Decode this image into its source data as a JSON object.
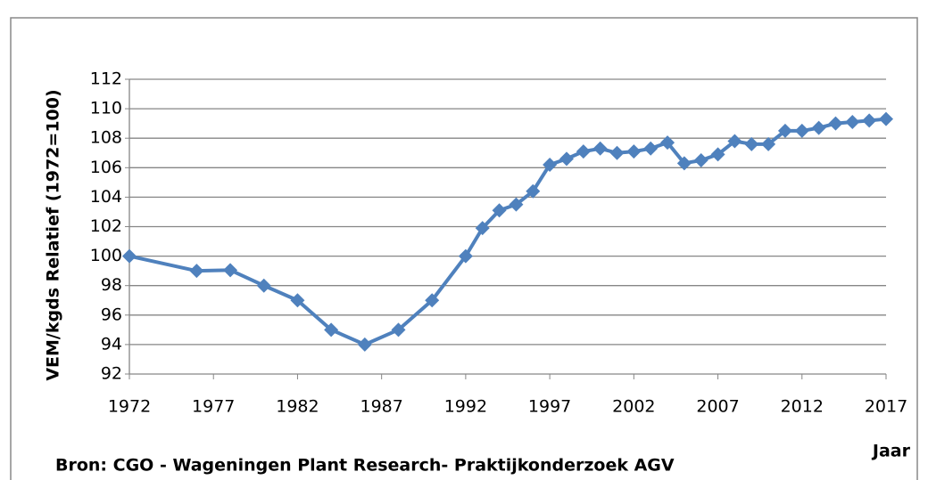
{
  "chart_data": {
    "type": "line",
    "y_label": "VEM/kgds Relatief (1972=100)",
    "x_label": "Jaar",
    "source": "Bron: CGO - Wageningen Plant Research- Praktijkonderzoek AGV",
    "x": [
      1972,
      1976,
      1978,
      1980,
      1982,
      1984,
      1986,
      1988,
      1990,
      1992,
      1993,
      1994,
      1995,
      1996,
      1997,
      1998,
      1999,
      2000,
      2001,
      2002,
      2003,
      2004,
      2005,
      2006,
      2007,
      2008,
      2009,
      2010,
      2011,
      2012,
      2013,
      2014,
      2015,
      2016,
      2017
    ],
    "series": [
      {
        "color": "#4f81bd",
        "values": [
          100,
          99,
          99.05,
          98,
          97,
          95,
          94,
          95,
          97,
          100,
          101.9,
          103.1,
          103.5,
          104.4,
          106.2,
          106.6,
          107.1,
          107.3,
          107,
          107.1,
          107.3,
          107.7,
          106.3,
          106.5,
          106.9,
          107.8,
          107.6,
          107.6,
          108.5,
          108.5,
          108.7,
          109,
          109.1,
          109.2,
          109.3
        ]
      }
    ],
    "xlim": [
      1972,
      2017
    ],
    "xticks": [
      1972,
      1977,
      1982,
      1987,
      1992,
      1997,
      2002,
      2007,
      2012,
      2017
    ],
    "ylim": [
      92,
      112
    ],
    "yticks": [
      92,
      94,
      96,
      98,
      100,
      102,
      104,
      106,
      108,
      110,
      112
    ],
    "grid": true
  }
}
